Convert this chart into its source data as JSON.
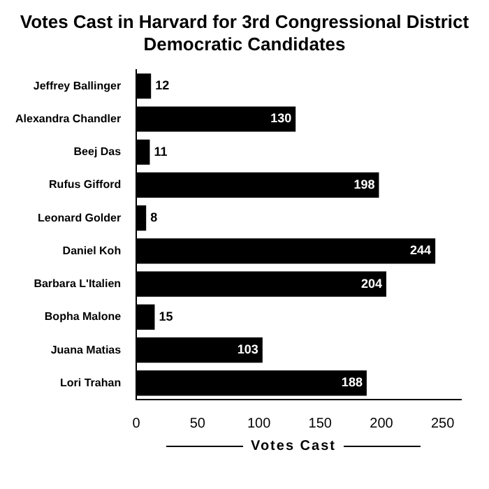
{
  "chart_data": {
    "type": "bar",
    "orientation": "horizontal",
    "title": "Votes Cast in Harvard for 3rd Congressional District Democratic Candidates",
    "xlabel": "Votes Cast",
    "categories": [
      "Jeffrey Ballinger",
      "Alexandra Chandler",
      "Beej Das",
      "Rufus Gifford",
      "Leonard Golder",
      "Daniel Koh",
      "Barbara L'Italien",
      "Bopha Malone",
      "Juana Matias",
      "Lori Trahan"
    ],
    "values": [
      12,
      130,
      11,
      198,
      8,
      244,
      204,
      15,
      103,
      188
    ],
    "color": "#000000",
    "xlim": [
      0,
      265
    ],
    "xticks": [
      0,
      50,
      100,
      150,
      200,
      250
    ],
    "grid": false,
    "data_labels": true,
    "legend": false
  }
}
